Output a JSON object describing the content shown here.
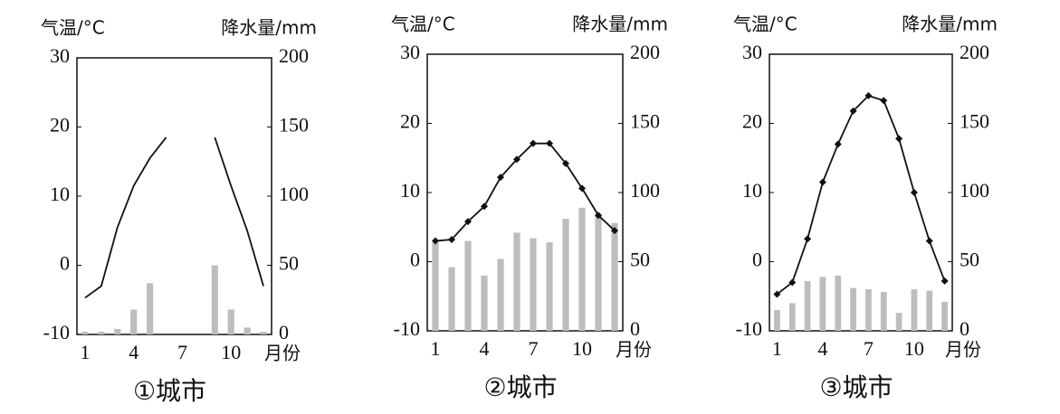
{
  "chart_data": [
    {
      "type": "combo",
      "title": "①城市",
      "ylabel": "气温/°C",
      "y2label": "降水量/mm",
      "xlabel": "月份",
      "categories": [
        "1",
        null,
        null,
        "4",
        null,
        null,
        "7",
        null,
        null,
        "10",
        null,
        null
      ],
      "ylim": [
        -10,
        30
      ],
      "yticks": [
        -10,
        0,
        10,
        20,
        30
      ],
      "y2lim": [
        0,
        200
      ],
      "y2ticks": [
        0,
        50,
        100,
        150,
        200
      ],
      "series": [
        {
          "type": "bar",
          "axis": "y2",
          "color": "#bdbdbd",
          "values": [
            2,
            2,
            4,
            18,
            37,
            0,
            0,
            0,
            50,
            18,
            5,
            2
          ]
        },
        {
          "type": "line",
          "color": "#111111",
          "marker": false,
          "values": [
            -4.7,
            -3,
            5.5,
            11.5,
            15.5,
            18.5,
            null,
            null,
            18.5,
            11.5,
            5,
            -3
          ]
        }
      ]
    },
    {
      "type": "combo",
      "title": "②城市",
      "ylabel": "气温/°C",
      "y2label": "降水量/mm",
      "xlabel": "月份",
      "categories": [
        "1",
        null,
        null,
        "4",
        null,
        null,
        "7",
        null,
        null,
        "10",
        null,
        null
      ],
      "ylim": [
        -10,
        30
      ],
      "yticks": [
        -10,
        0,
        10,
        20,
        30
      ],
      "y2lim": [
        0,
        200
      ],
      "y2ticks": [
        0,
        50,
        100,
        150,
        200
      ],
      "series": [
        {
          "type": "bar",
          "axis": "y2",
          "color": "#bdbdbd",
          "values": [
            64,
            46,
            65,
            40,
            52,
            71,
            67,
            64,
            81,
            89,
            84,
            78
          ]
        },
        {
          "type": "line",
          "color": "#111111",
          "marker": true,
          "values": [
            3,
            3.2,
            5.8,
            8,
            12.2,
            14.8,
            17.1,
            17.1,
            14.2,
            10.6,
            6.7,
            4.5
          ]
        }
      ]
    },
    {
      "type": "combo",
      "title": "③城市",
      "ylabel": "气温/°C",
      "y2label": "降水量/mm",
      "xlabel": "月份",
      "categories": [
        "1",
        null,
        null,
        "4",
        null,
        null,
        "7",
        null,
        null,
        "10",
        null,
        null
      ],
      "ylim": [
        -10,
        30
      ],
      "yticks": [
        -10,
        0,
        10,
        20,
        30
      ],
      "y2lim": [
        0,
        200
      ],
      "y2ticks": [
        0,
        50,
        100,
        150,
        200
      ],
      "series": [
        {
          "type": "bar",
          "axis": "y2",
          "color": "#bdbdbd",
          "values": [
            15,
            20,
            36,
            39,
            40,
            31,
            30,
            28,
            13,
            30,
            29,
            21
          ]
        },
        {
          "type": "line",
          "color": "#111111",
          "marker": true,
          "values": [
            -4.7,
            -3,
            3.3,
            11.5,
            17,
            21.8,
            24,
            23.3,
            17.8,
            10,
            3,
            -2.8
          ]
        }
      ]
    }
  ]
}
